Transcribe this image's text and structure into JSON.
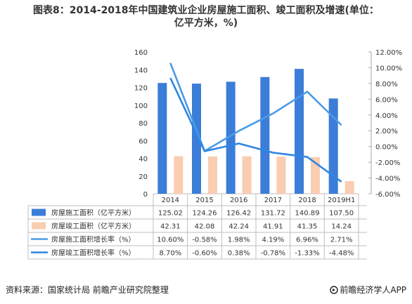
{
  "title": {
    "line1": "图表8：2014-2018年中国建筑业企业房屋施工面积、竣工面积及增速(单位：",
    "line2": "亿平方米，%)"
  },
  "source": "资料来源：国家统计局 前瞻产业研究院整理",
  "brand": "前瞻经济学人APP",
  "colors": {
    "bar1": "#3B7DD8",
    "bar2": "#F9CDB1",
    "line1": "#4A9BE8",
    "line2": "#2F86E3",
    "grid": "#D9D9D9",
    "text": "#333333"
  },
  "chart_data": {
    "type": "bar",
    "categories": [
      "2014",
      "2015",
      "2016",
      "2017",
      "2018",
      "2019H1"
    ],
    "y_left": {
      "min": 0,
      "max": 160,
      "ticks": [
        "0",
        "20",
        "40",
        "60",
        "80",
        "100",
        "120",
        "140",
        "160"
      ]
    },
    "y_right": {
      "min": -6,
      "max": 12,
      "ticks": [
        "-6.00%",
        "-4.00%",
        "-2.00%",
        "0.00%",
        "2.00%",
        "4.00%",
        "6.00%",
        "8.00%",
        "10.00%",
        "12.00%"
      ]
    },
    "grid": false,
    "legend_placement": "data-table",
    "series": [
      {
        "name": "房屋施工面积（亿平方米）",
        "kind": "bar",
        "axis": "left",
        "values": [
          125.02,
          124.26,
          126.42,
          131.72,
          140.89,
          107.5
        ],
        "labels": [
          "125.02",
          "124.26",
          "126.42",
          "131.72",
          "140.89",
          "107.50"
        ]
      },
      {
        "name": "房屋竣工面积（亿平方米）",
        "kind": "bar",
        "axis": "left",
        "values": [
          42.31,
          42.08,
          42.24,
          41.91,
          41.35,
          14.24
        ],
        "labels": [
          "42.31",
          "42.08",
          "42.24",
          "41.91",
          "41.35",
          "14.24"
        ]
      },
      {
        "name": "房屋施工面积增长率（%）",
        "kind": "line",
        "axis": "right",
        "values": [
          10.6,
          -0.58,
          1.98,
          4.19,
          6.96,
          2.71
        ],
        "labels": [
          "10.60%",
          "-0.58%",
          "1.98%",
          "4.19%",
          "6.96%",
          "2.71%"
        ]
      },
      {
        "name": "房屋竣工面积增长率（%）",
        "kind": "line",
        "axis": "right",
        "values": [
          8.7,
          -0.6,
          0.38,
          -0.78,
          -1.33,
          -4.48
        ],
        "labels": [
          "8.70%",
          "-0.60%",
          "0.38%",
          "-0.78%",
          "-1.33%",
          "-4.48%"
        ]
      }
    ]
  }
}
